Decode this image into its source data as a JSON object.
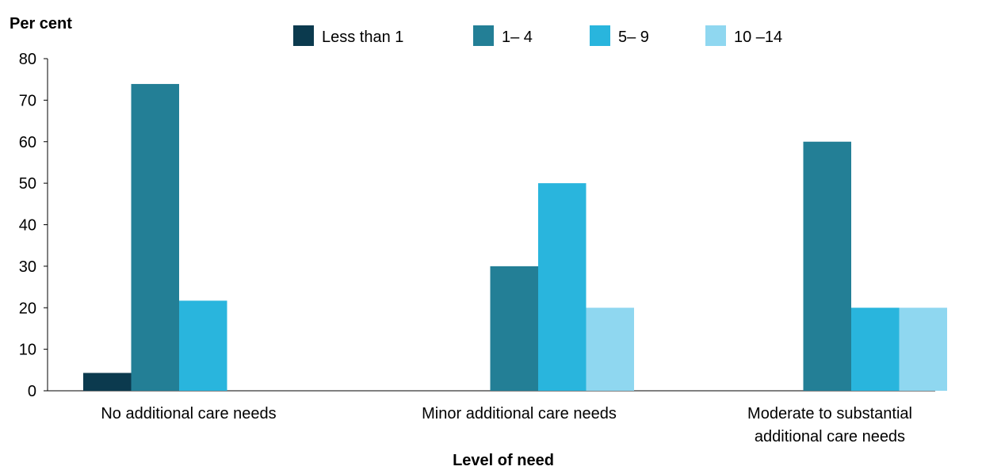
{
  "chart_data": {
    "type": "bar",
    "ylabel": "Per cent",
    "xlabel": "Level of need",
    "ylim": [
      0,
      80
    ],
    "yticks": [
      0,
      10,
      20,
      30,
      40,
      50,
      60,
      70,
      80
    ],
    "grid": false,
    "legend_position": "top",
    "categories": [
      [
        "No additional care needs"
      ],
      [
        "Minor additional care needs"
      ],
      [
        "Moderate to substantial",
        "additional care needs"
      ]
    ],
    "series": [
      {
        "name": "Less than 1",
        "color": "#0b3a4e",
        "values": [
          4.3,
          0,
          0
        ]
      },
      {
        "name": "1– 4",
        "color": "#237f96",
        "values": [
          73.9,
          30,
          60
        ]
      },
      {
        "name": "5– 9",
        "color": "#29b5dd",
        "values": [
          21.7,
          50,
          20
        ]
      },
      {
        "name": "10 –14",
        "color": "#8fd7f0",
        "values": [
          0,
          20,
          20
        ]
      }
    ]
  }
}
